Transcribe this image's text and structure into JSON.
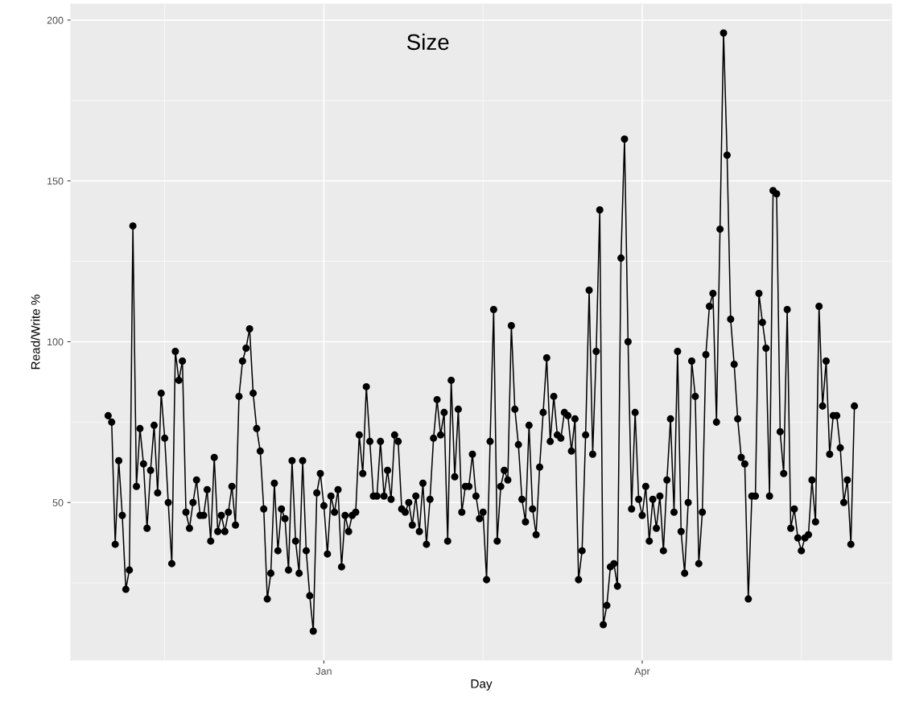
{
  "chart_data": {
    "type": "line",
    "title": "Size",
    "xlabel": "Day",
    "ylabel": "Read/Write %",
    "categories": [
      null,
      null,
      null,
      null,
      null,
      null,
      null,
      null,
      null,
      null,
      null,
      null,
      null,
      null,
      null,
      null,
      null,
      null,
      null,
      null,
      null,
      null,
      null,
      null,
      null,
      null,
      null,
      null,
      null,
      null,
      null,
      null,
      null,
      null,
      null,
      null,
      null,
      null,
      null,
      null,
      null,
      null,
      null,
      null,
      null,
      null,
      null,
      null,
      null,
      null,
      null,
      null,
      null,
      null,
      null,
      null,
      null,
      null,
      null,
      null,
      null,
      "Jan",
      null,
      null,
      null,
      null,
      null,
      null,
      null,
      null,
      null,
      null,
      null,
      null,
      null,
      null,
      null,
      null,
      null,
      null,
      null,
      null,
      null,
      null,
      null,
      null,
      null,
      null,
      null,
      null,
      null,
      null,
      null,
      null,
      null,
      null,
      null,
      null,
      null,
      null,
      null,
      null,
      null,
      null,
      null,
      null,
      null,
      null,
      null,
      null,
      null,
      null,
      null,
      null,
      null,
      null,
      null,
      null,
      null,
      null,
      null,
      null,
      null,
      null,
      null,
      null,
      null,
      null,
      null,
      null,
      null,
      null,
      null,
      null,
      null,
      null,
      null,
      null,
      null,
      null,
      null,
      null,
      null,
      null,
      null,
      null,
      null,
      null,
      null,
      null,
      null,
      "Apr",
      null,
      null,
      null,
      null,
      null,
      null,
      null,
      null,
      null,
      null,
      null,
      null,
      null,
      null,
      null,
      null,
      null,
      null,
      null,
      null,
      null,
      null,
      null,
      null,
      null,
      null,
      null,
      null,
      null,
      null,
      null,
      null,
      null,
      null,
      null,
      null,
      null,
      null,
      null,
      null,
      null,
      null,
      null,
      null,
      null,
      null,
      null,
      null,
      null,
      null,
      null,
      null,
      null,
      null,
      null,
      null,
      null,
      null,
      null,
      null
    ],
    "series": [
      {
        "color": "#000000",
        "values": [
          77,
          75,
          37,
          63,
          46,
          23,
          29,
          136,
          55,
          73,
          62,
          42,
          60,
          74,
          53,
          84,
          70,
          50,
          31,
          97,
          88,
          94,
          47,
          42,
          50,
          57,
          46,
          46,
          54,
          38,
          64,
          41,
          46,
          41,
          47,
          55,
          43,
          83,
          94,
          98,
          104,
          84,
          73,
          66,
          48,
          20,
          28,
          56,
          35,
          48,
          45,
          29,
          63,
          38,
          28,
          63,
          35,
          21,
          10,
          53,
          59,
          49,
          34,
          52,
          47,
          54,
          30,
          46,
          41,
          46,
          47,
          71,
          59,
          86,
          69,
          52,
          52,
          69,
          52,
          60,
          51,
          71,
          69,
          48,
          47,
          50,
          43,
          52,
          41,
          56,
          37,
          51,
          70,
          82,
          71,
          78,
          38,
          88,
          58,
          79,
          47,
          55,
          55,
          65,
          52,
          45,
          47,
          26,
          69,
          110,
          38,
          55,
          60,
          57,
          105,
          79,
          68,
          51,
          44,
          74,
          48,
          40,
          61,
          78,
          95,
          69,
          83,
          71,
          70,
          78,
          77,
          66,
          76,
          26,
          35,
          71,
          116,
          65,
          97,
          141,
          12,
          18,
          30,
          31,
          24,
          126,
          163,
          100,
          48,
          78,
          51,
          46,
          55,
          38,
          51,
          42,
          52,
          35,
          57,
          76,
          47,
          97,
          41,
          28,
          50,
          94,
          83,
          31,
          47,
          96,
          111,
          115,
          75,
          135,
          196,
          158,
          107,
          93,
          76,
          64,
          62,
          20,
          52,
          52,
          115,
          106,
          98,
          52,
          147,
          146,
          72,
          59,
          110,
          42,
          48,
          39,
          35,
          39,
          40,
          57,
          44,
          111,
          80,
          94,
          65,
          77,
          77,
          67,
          50,
          57,
          37,
          80
        ]
      }
    ],
    "ylim": [
      1,
      205
    ],
    "yticks": [
      50,
      100,
      150,
      200
    ],
    "grid": true,
    "marker": "circle",
    "line_style": "solid"
  }
}
